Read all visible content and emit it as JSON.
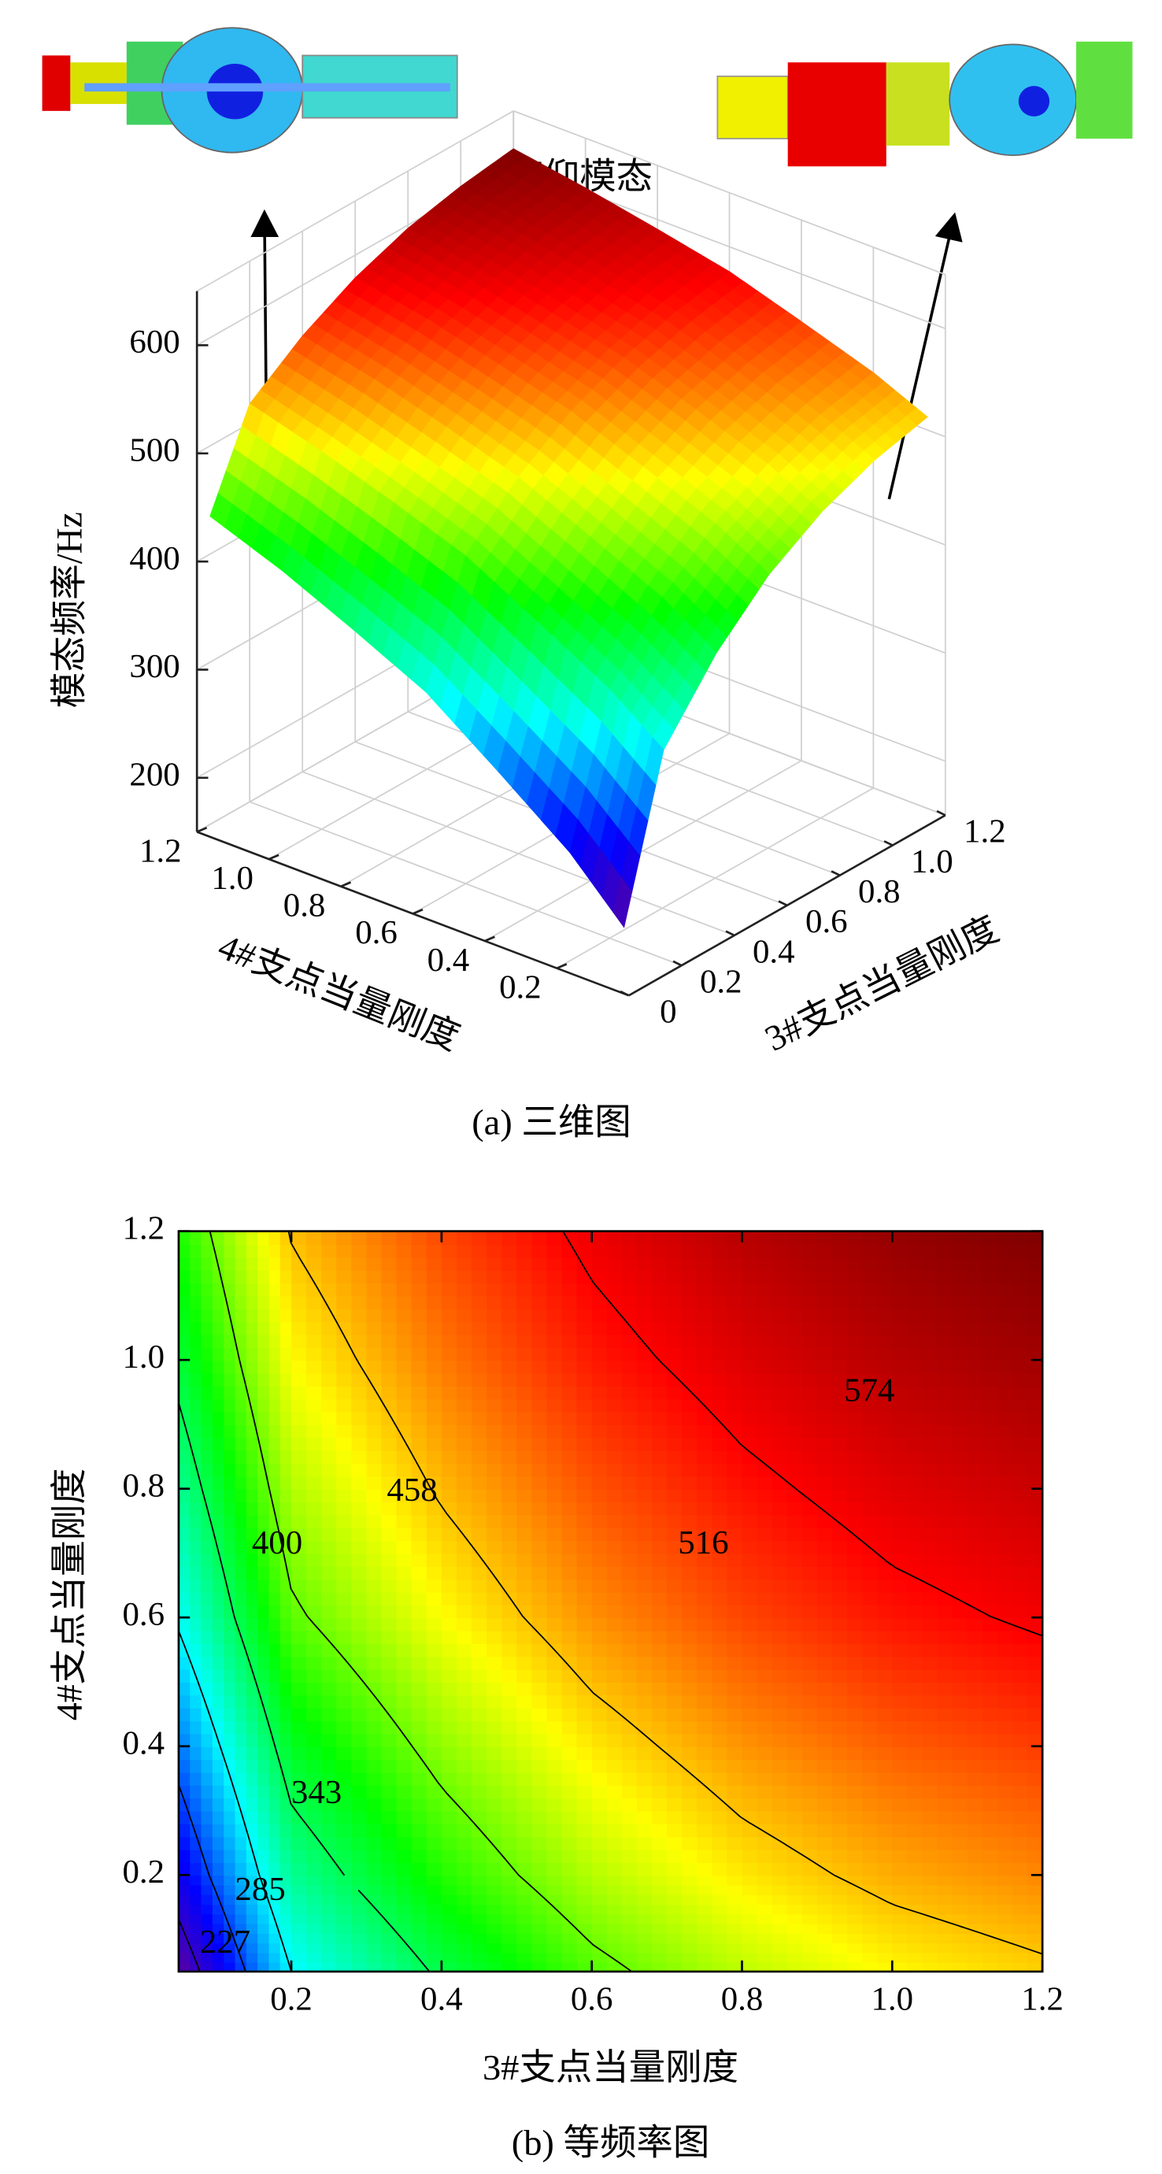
{
  "chart_data": [
    {
      "type": "surface3d",
      "title": "俯仰模态",
      "caption": "(a) 三维图",
      "x_label": "3#支点当量刚度",
      "y_label": "4#支点当量刚度",
      "z_label": "模态频率/Hz",
      "x": [
        0.05,
        0.2,
        0.4,
        0.6,
        0.8,
        1.0,
        1.2
      ],
      "y": [
        0.05,
        0.2,
        0.4,
        0.6,
        0.8,
        1.0,
        1.2
      ],
      "z": [
        [
          200,
          343,
          405,
          450,
          480,
          500,
          512
        ],
        [
          250,
          380,
          437,
          478,
          505,
          523,
          534
        ],
        [
          300,
          417,
          468,
          505,
          530,
          546,
          556
        ],
        [
          348,
          453,
          498,
          531,
          553,
          568,
          577
        ],
        [
          380,
          477,
          519,
          549,
          569,
          583,
          591
        ],
        [
          410,
          499,
          538,
          566,
          584,
          597,
          604
        ],
        [
          435,
          518,
          553,
          579,
          597,
          608,
          615
        ]
      ],
      "xlim": [
        0,
        1.2
      ],
      "ylim": [
        0,
        1.2
      ],
      "zlim": [
        150,
        650
      ],
      "xticks": [
        0,
        0.2,
        0.4,
        0.6,
        0.8,
        {
          "value": 1,
          "label": "1.0"
        },
        1.2
      ],
      "yticks": [
        0.2,
        0.4,
        0.6,
        0.8,
        {
          "value": 1,
          "label": "1.0"
        },
        1.2
      ],
      "zticks": [
        200,
        300,
        400,
        500,
        600
      ],
      "colormap": "jet",
      "grid": true
    },
    {
      "type": "contour",
      "caption": "(b) 等频率图",
      "x_label": "3#支点当量刚度",
      "y_label": "4#支点当量刚度",
      "x": [
        0.05,
        0.2,
        0.4,
        0.6,
        0.8,
        1.0,
        1.2
      ],
      "y": [
        0.05,
        0.2,
        0.4,
        0.6,
        0.8,
        1.0,
        1.2
      ],
      "z": [
        [
          200,
          343,
          405,
          450,
          480,
          500,
          512
        ],
        [
          250,
          380,
          437,
          478,
          505,
          523,
          534
        ],
        [
          300,
          417,
          468,
          505,
          530,
          546,
          556
        ],
        [
          348,
          453,
          498,
          531,
          553,
          568,
          577
        ],
        [
          380,
          477,
          519,
          549,
          569,
          583,
          591
        ],
        [
          410,
          499,
          538,
          566,
          584,
          597,
          604
        ],
        [
          435,
          518,
          553,
          579,
          597,
          608,
          615
        ]
      ],
      "levels": [
        227,
        285,
        343,
        400,
        458,
        516,
        574
      ],
      "xlim": [
        0.05,
        1.2
      ],
      "ylim": [
        0.05,
        1.2
      ],
      "xticks": [
        0.2,
        0.4,
        0.6,
        0.8,
        {
          "value": 1,
          "label": "1.0"
        },
        1.2
      ],
      "yticks": [
        0.2,
        0.4,
        0.6,
        0.8,
        {
          "value": 1,
          "label": "1.0"
        },
        1.2
      ],
      "colormap": "jet"
    }
  ]
}
